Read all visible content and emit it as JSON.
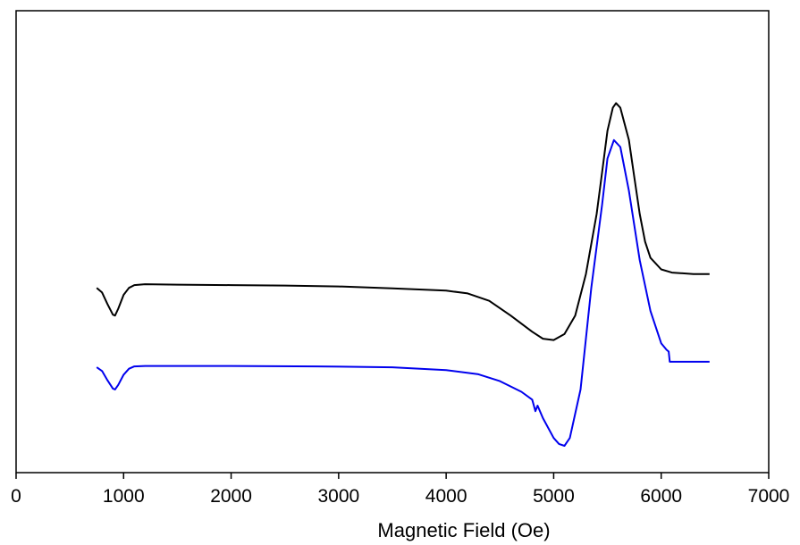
{
  "chart_data": {
    "type": "line",
    "title": "",
    "xlabel": "Magnetic Field (Oe)",
    "ylabel": "",
    "xlim": [
      0,
      7000
    ],
    "ylim": [
      0,
      1
    ],
    "x_ticks": [
      0,
      1000,
      2000,
      3000,
      4000,
      5000,
      6000,
      7000
    ],
    "x_tick_labels": [
      "0",
      "1000",
      "2000",
      "3000",
      "4000",
      "5000",
      "6000",
      "7000"
    ],
    "y_ticks_shown": false,
    "grid": false,
    "legend": "none",
    "series": [
      {
        "color": "#000000",
        "points": [
          [
            750,
            0.4
          ],
          [
            800,
            0.39
          ],
          [
            850,
            0.365
          ],
          [
            900,
            0.342
          ],
          [
            920,
            0.34
          ],
          [
            950,
            0.355
          ],
          [
            1000,
            0.385
          ],
          [
            1050,
            0.4
          ],
          [
            1100,
            0.406
          ],
          [
            1200,
            0.408
          ],
          [
            1500,
            0.407
          ],
          [
            2000,
            0.406
          ],
          [
            2500,
            0.405
          ],
          [
            3000,
            0.403
          ],
          [
            3500,
            0.399
          ],
          [
            4000,
            0.394
          ],
          [
            4200,
            0.388
          ],
          [
            4400,
            0.372
          ],
          [
            4600,
            0.34
          ],
          [
            4800,
            0.305
          ],
          [
            4900,
            0.29
          ],
          [
            5000,
            0.287
          ],
          [
            5100,
            0.3
          ],
          [
            5200,
            0.34
          ],
          [
            5300,
            0.43
          ],
          [
            5400,
            0.56
          ],
          [
            5450,
            0.65
          ],
          [
            5500,
            0.74
          ],
          [
            5550,
            0.79
          ],
          [
            5580,
            0.8
          ],
          [
            5620,
            0.79
          ],
          [
            5700,
            0.72
          ],
          [
            5750,
            0.64
          ],
          [
            5800,
            0.56
          ],
          [
            5850,
            0.5
          ],
          [
            5900,
            0.465
          ],
          [
            6000,
            0.44
          ],
          [
            6100,
            0.433
          ],
          [
            6300,
            0.43
          ],
          [
            6450,
            0.43
          ]
        ]
      },
      {
        "color": "#0000ee",
        "points": [
          [
            750,
            0.228
          ],
          [
            800,
            0.22
          ],
          [
            850,
            0.2
          ],
          [
            900,
            0.182
          ],
          [
            920,
            0.18
          ],
          [
            950,
            0.19
          ],
          [
            1000,
            0.212
          ],
          [
            1050,
            0.225
          ],
          [
            1100,
            0.23
          ],
          [
            1200,
            0.231
          ],
          [
            2000,
            0.231
          ],
          [
            2800,
            0.23
          ],
          [
            3500,
            0.228
          ],
          [
            4000,
            0.222
          ],
          [
            4300,
            0.213
          ],
          [
            4500,
            0.198
          ],
          [
            4700,
            0.175
          ],
          [
            4800,
            0.158
          ],
          [
            4830,
            0.133
          ],
          [
            4850,
            0.145
          ],
          [
            4900,
            0.118
          ],
          [
            5000,
            0.075
          ],
          [
            5050,
            0.062
          ],
          [
            5100,
            0.058
          ],
          [
            5150,
            0.075
          ],
          [
            5250,
            0.18
          ],
          [
            5350,
            0.4
          ],
          [
            5450,
            0.58
          ],
          [
            5500,
            0.68
          ],
          [
            5560,
            0.72
          ],
          [
            5620,
            0.705
          ],
          [
            5700,
            0.61
          ],
          [
            5800,
            0.46
          ],
          [
            5900,
            0.35
          ],
          [
            6000,
            0.28
          ],
          [
            6050,
            0.266
          ],
          [
            6070,
            0.262
          ],
          [
            6080,
            0.24
          ],
          [
            6200,
            0.24
          ],
          [
            6450,
            0.24
          ]
        ]
      }
    ]
  }
}
